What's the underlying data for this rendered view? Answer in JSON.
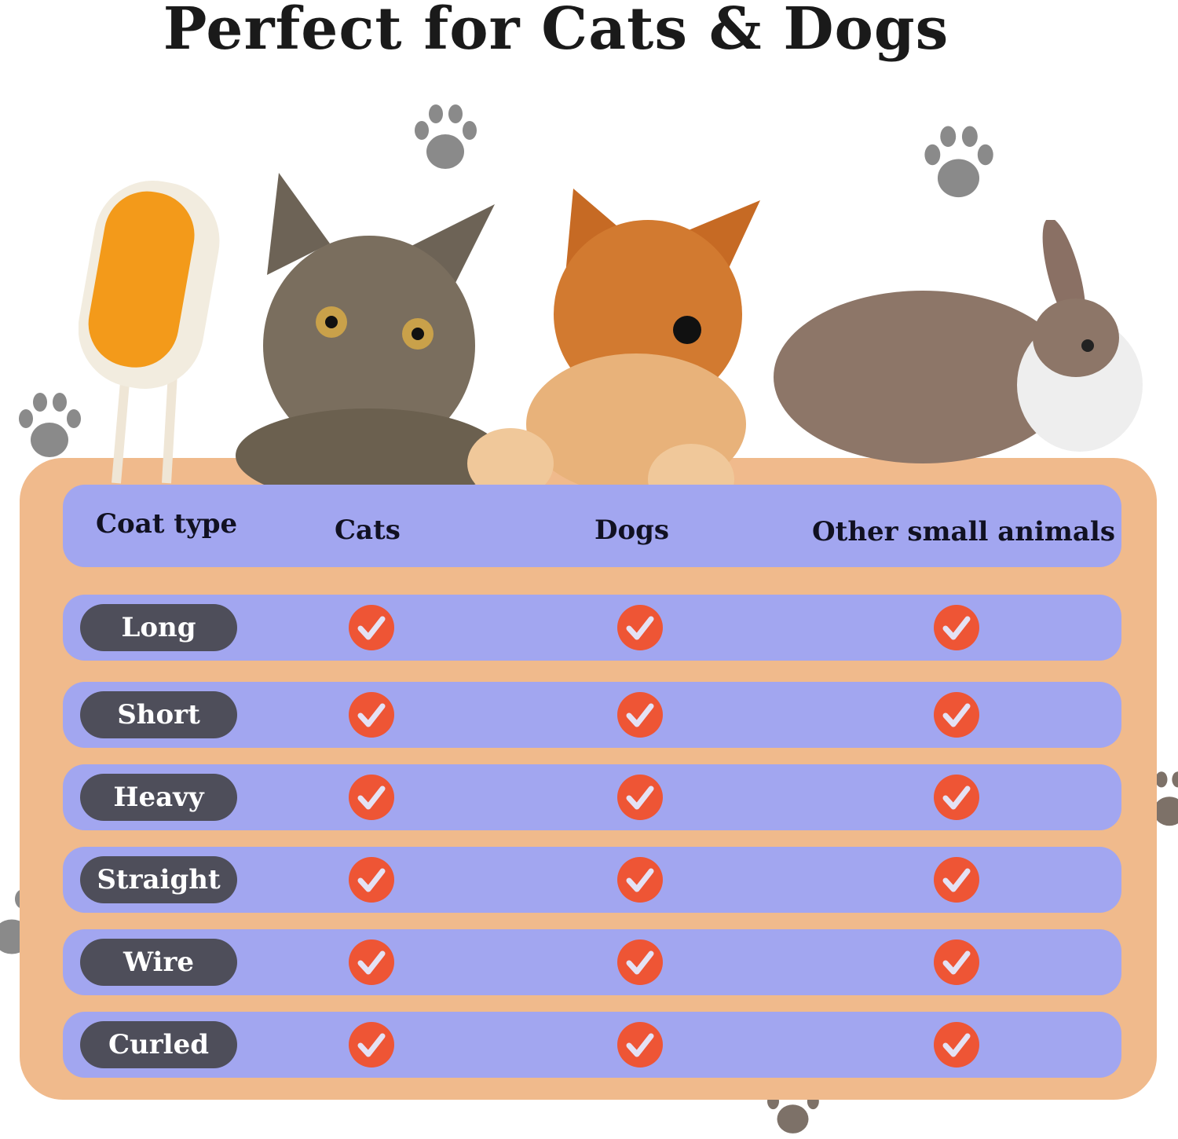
{
  "title": "Perfect for Cats & Dogs",
  "table": {
    "headers": [
      "Coat type",
      "Cats",
      "Dogs",
      "Other small animals"
    ],
    "rows": [
      {
        "label": "Long",
        "cats": true,
        "dogs": true,
        "other": true
      },
      {
        "label": "Short",
        "cats": true,
        "dogs": true,
        "other": true
      },
      {
        "label": "Heavy",
        "cats": true,
        "dogs": true,
        "other": true
      },
      {
        "label": "Straight",
        "cats": true,
        "dogs": true,
        "other": true
      },
      {
        "label": "Wire",
        "cats": true,
        "dogs": true,
        "other": true
      },
      {
        "label": "Curled",
        "cats": true,
        "dogs": true,
        "other": true
      }
    ]
  },
  "colors": {
    "panel": "#f0ba8c",
    "row": "#a2a6f0",
    "pill": "#4e4e5a",
    "check": "#ee5535",
    "paw": "#8a8a8a"
  },
  "icons": [
    "check-circle-icon",
    "paw-print-icon"
  ]
}
